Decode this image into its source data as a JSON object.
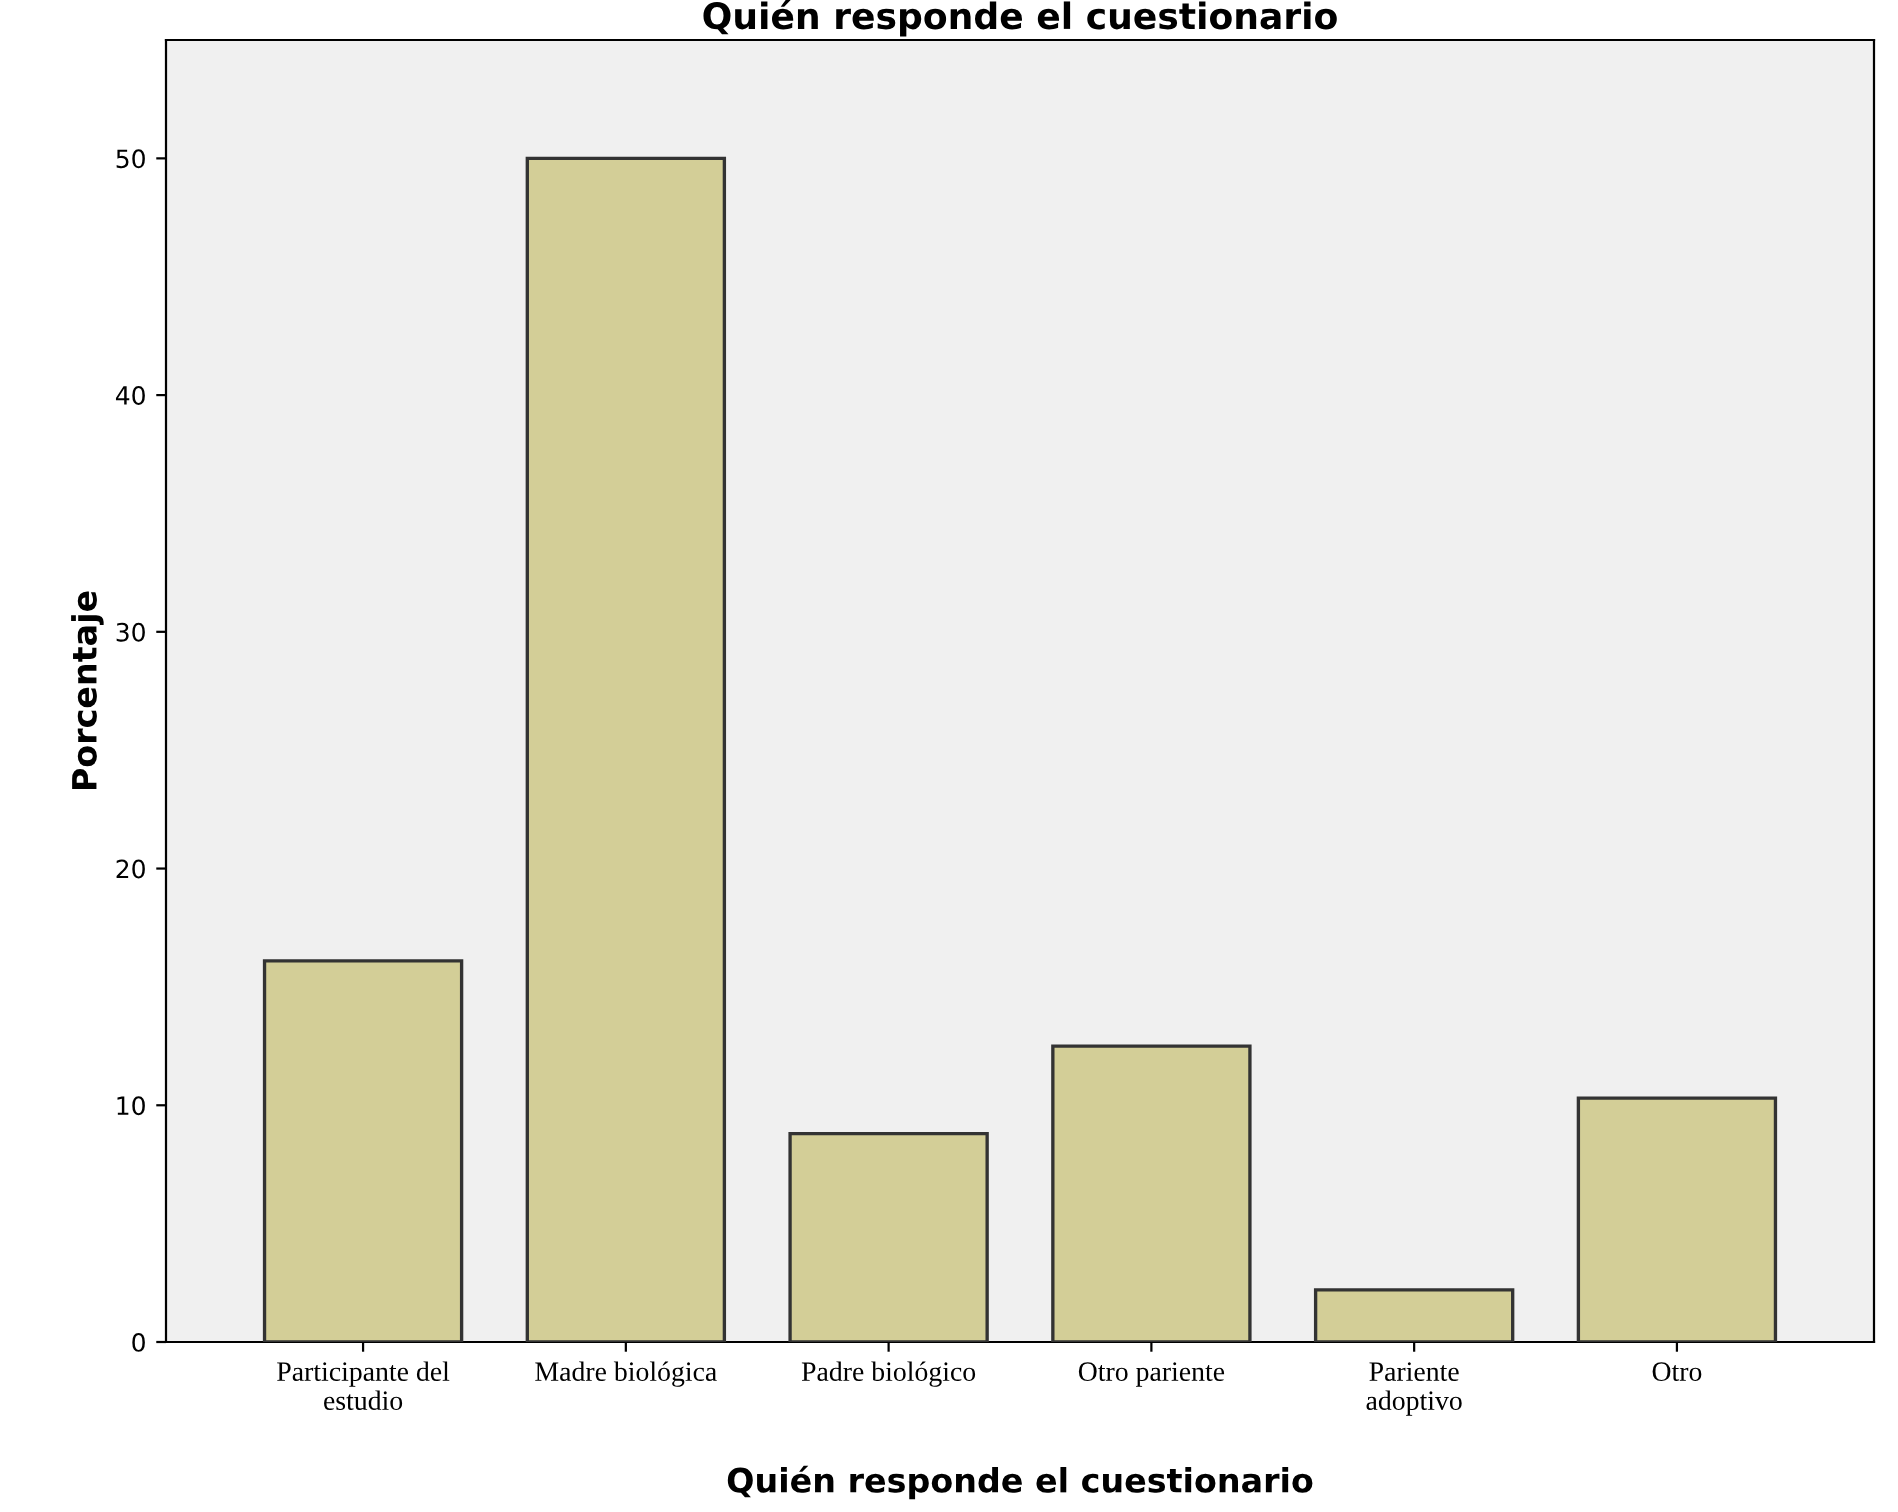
{
  "chart_data": {
    "type": "bar",
    "title": "Quién responde el cuestionario",
    "xlabel": "Quién responde el cuestionario",
    "ylabel": "Porcentaje",
    "categories": [
      "Participante del\nestudio",
      "Madre biológica",
      "Padre biológico",
      "Otro pariente",
      "Pariente\nadoptivo",
      "Otro"
    ],
    "values": [
      16.1,
      50.0,
      8.8,
      12.5,
      2.2,
      10.3
    ],
    "color": "#d3ce97",
    "ylim": [
      0,
      55
    ],
    "yticks": [
      0,
      10,
      20,
      30,
      40,
      50
    ],
    "grid": false
  }
}
